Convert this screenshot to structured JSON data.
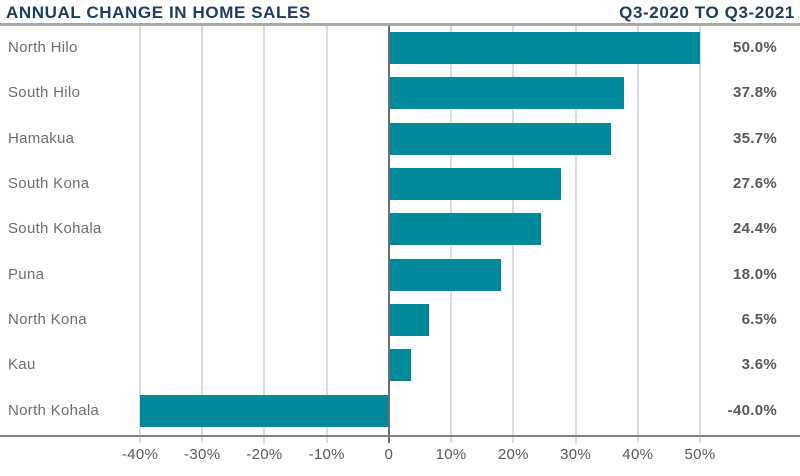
{
  "header": {
    "title": "ANNUAL CHANGE IN HOME SALES",
    "subtitle": "Q3-2020 TO Q3-2021"
  },
  "chart_data": {
    "type": "bar",
    "orientation": "horizontal",
    "title": "ANNUAL CHANGE IN HOME SALES",
    "subtitle": "Q3-2020 TO Q3-2021",
    "categories": [
      "North Hilo",
      "South Hilo",
      "Hamakua",
      "South Kona",
      "South Kohala",
      "Puna",
      "North Kona",
      "Kau",
      "North Kohala"
    ],
    "values": [
      50.0,
      37.8,
      35.7,
      27.6,
      24.4,
      18.0,
      6.5,
      3.6,
      -40.0
    ],
    "value_labels": [
      "50.0%",
      "37.8%",
      "35.7%",
      "27.6%",
      "24.4%",
      "18.0%",
      "6.5%",
      "3.6%",
      "-40.0%"
    ],
    "xlabel": "",
    "ylabel": "",
    "x_axis": {
      "min": -40,
      "max": 50,
      "ticks": [
        -40,
        -30,
        -20,
        -10,
        0,
        10,
        20,
        30,
        40,
        50
      ],
      "tick_labels": [
        "-40%",
        "-30%",
        "-20%",
        "-10%",
        "0",
        "10%",
        "20%",
        "30%",
        "40%",
        "50%"
      ]
    },
    "grid": "vertical",
    "legend": "none",
    "colors": {
      "bar": "#00889B",
      "title": "#1E3C5F",
      "category_label": "#6D6E71",
      "value_label": "#58595B",
      "tick_label": "#58595B",
      "gridline": "#DBDCDD",
      "zero_line": "#6D6E71",
      "axis_line": "#808285",
      "top_rule": "#A7A9AC"
    }
  }
}
